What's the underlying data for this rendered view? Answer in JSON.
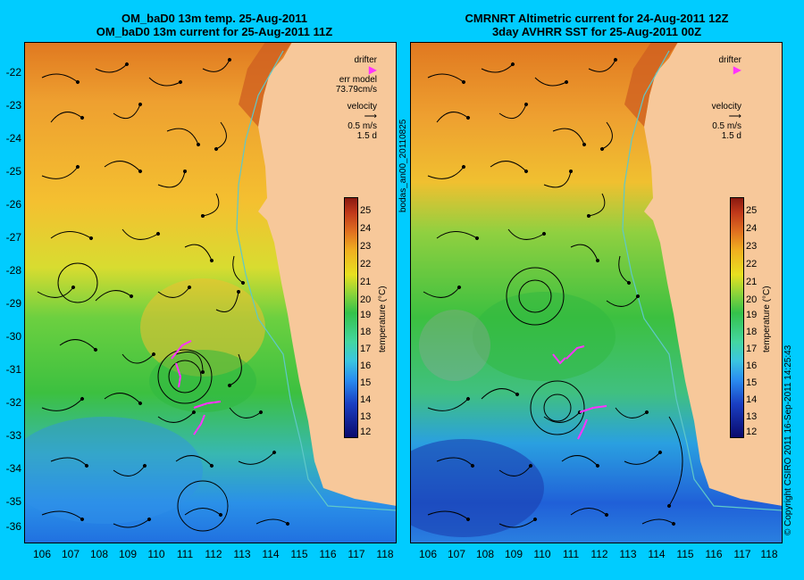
{
  "left_panel": {
    "title_line1": "OM_baD0 13m temp. 25-Aug-2011",
    "title_line2": "OM_baD0 13m current for 25-Aug-2011 11Z",
    "legend": {
      "drifter": "drifter",
      "err_model": "err model",
      "err_value": "73.79cm/s",
      "velocity": "velocity",
      "speed": "0.5 m/s",
      "duration": "1.5 d"
    }
  },
  "right_panel": {
    "title_line1": "CMRNRT Altimetric current for 24-Aug-2011 12Z",
    "title_line2": "3day AVHRR SST for 25-Aug-2011 00Z",
    "legend": {
      "drifter": "drifter",
      "velocity": "velocity",
      "speed": "0.5 m/s",
      "duration": "1.5 d"
    }
  },
  "y_axis_labels": [
    "-22",
    "-23",
    "-24",
    "-25",
    "-26",
    "-27",
    "-28",
    "-29",
    "-30",
    "-31",
    "-32",
    "-33",
    "-34",
    "-35",
    "-36"
  ],
  "x_axis_labels": [
    "106",
    "107",
    "108",
    "109",
    "110",
    "111",
    "112",
    "113",
    "114",
    "115",
    "116",
    "117",
    "118"
  ],
  "colorbar": {
    "ticks": [
      "25",
      "24",
      "23",
      "22",
      "21",
      "20",
      "19",
      "18",
      "17",
      "16",
      "15",
      "14",
      "13",
      "12"
    ],
    "unit_label": "temperature (°C)"
  },
  "side_label": "bodas_an00_20110825",
  "copyright": "© Copyright CSIRO 2011   16-Sep-2011 14:25:43",
  "colors": {
    "background": "#00ccff",
    "land": "#f7c89a",
    "drifter": "#ff33ff",
    "coast_isobath": "#5fc8c8"
  }
}
